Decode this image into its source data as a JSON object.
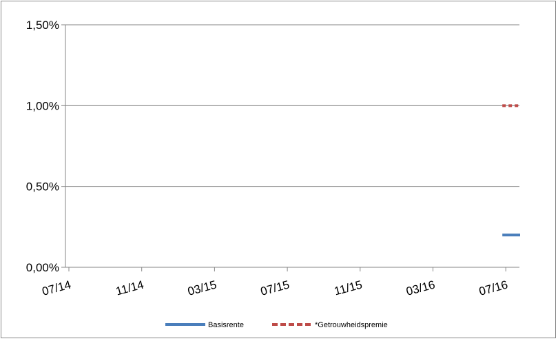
{
  "chart_data": {
    "type": "line",
    "title": "",
    "xlabel": "",
    "ylabel": "",
    "x_ticks": [
      "07/14",
      "11/14",
      "03/15",
      "07/15",
      "11/15",
      "03/16",
      "07/16"
    ],
    "y_ticks": [
      "0,00%",
      "0,50%",
      "1,00%",
      "1,50%"
    ],
    "ylim": [
      0,
      1.5
    ],
    "y_unit": "%",
    "grid": "horizontal",
    "legend_position": "bottom",
    "series": [
      {
        "name": "Basisrente",
        "style": "solid",
        "color": "#4a7ebb",
        "x": [
          "07/16",
          "07/16"
        ],
        "values": [
          0.2,
          0.2
        ]
      },
      {
        "name": "*Getrouwheidspremie",
        "style": "dashed",
        "color": "#be4b48",
        "x": [
          "07/16",
          "07/16"
        ],
        "values": [
          1.0,
          1.0
        ]
      }
    ]
  }
}
